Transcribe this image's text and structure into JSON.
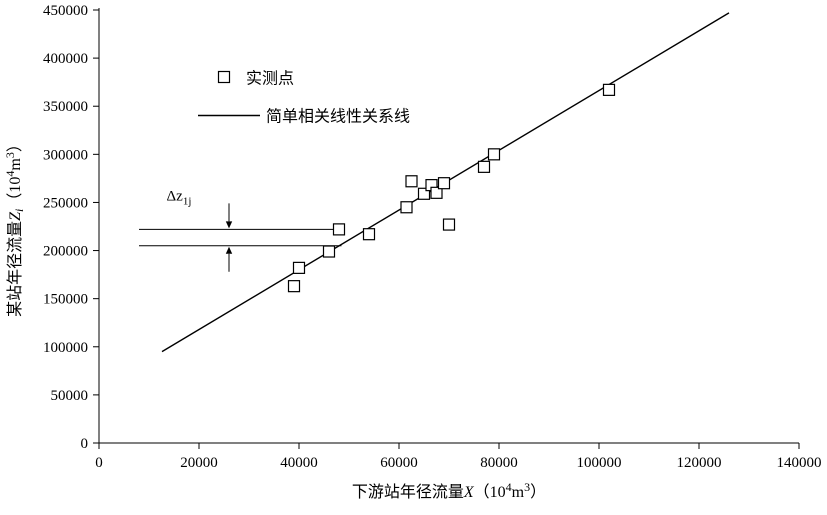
{
  "chart_data": {
    "type": "scatter",
    "title": "",
    "xlabel": "下游站年径流量X（10⁴m³）",
    "ylabel": "某站年径流量Zi（10⁴m³）",
    "xlabel_parts": [
      {
        "t": "下游站年径流量"
      },
      {
        "t": "X",
        "style": "italic"
      },
      {
        "t": "（10"
      },
      {
        "t": "4",
        "sup": true
      },
      {
        "t": "m"
      },
      {
        "t": "3",
        "sup": true
      },
      {
        "t": "）"
      }
    ],
    "ylabel_parts": [
      {
        "t": "某站年径流量"
      },
      {
        "t": "Z",
        "style": "italic"
      },
      {
        "t": "i",
        "sub": true,
        "style": "italic"
      },
      {
        "t": "（10"
      },
      {
        "t": "4",
        "sup": true
      },
      {
        "t": "m"
      },
      {
        "t": "3",
        "sup": true
      },
      {
        "t": "）"
      }
    ],
    "xlim": [
      0,
      140000
    ],
    "ylim": [
      0,
      450000
    ],
    "xticks": [
      0,
      20000,
      40000,
      60000,
      80000,
      100000,
      120000,
      140000
    ],
    "yticks": [
      0,
      50000,
      100000,
      150000,
      200000,
      250000,
      300000,
      350000,
      400000,
      450000
    ],
    "grid": false,
    "axis_color": "#000000",
    "legend_position": "upper-left-inside",
    "series": [
      {
        "name": "实测点",
        "type": "scatter",
        "marker": "open-square",
        "color": "#000000",
        "points": [
          [
            39000,
            163000
          ],
          [
            40000,
            182000
          ],
          [
            46000,
            199000
          ],
          [
            48000,
            222000
          ],
          [
            54000,
            217000
          ],
          [
            61500,
            245000
          ],
          [
            62500,
            272000
          ],
          [
            65000,
            259000
          ],
          [
            66500,
            268000
          ],
          [
            67500,
            260000
          ],
          [
            69000,
            270000
          ],
          [
            70000,
            227000
          ],
          [
            77000,
            287000
          ],
          [
            79000,
            300000
          ],
          [
            102000,
            367000
          ]
        ]
      },
      {
        "name": "简单相关线性关系线",
        "type": "line",
        "color": "#000000",
        "points": [
          [
            12600,
            95000
          ],
          [
            126000,
            447000
          ]
        ]
      }
    ],
    "annotation": {
      "label_main": "Δz",
      "label_sub": "1j",
      "upper_line": {
        "y": 222000,
        "x_start": 8000,
        "x_end": 48500
      },
      "lower_line": {
        "y": 205000,
        "x_start": 8000,
        "x_end": 48500
      },
      "arrow_x": 26000,
      "label_x": 13500,
      "label_y": 252000
    }
  }
}
